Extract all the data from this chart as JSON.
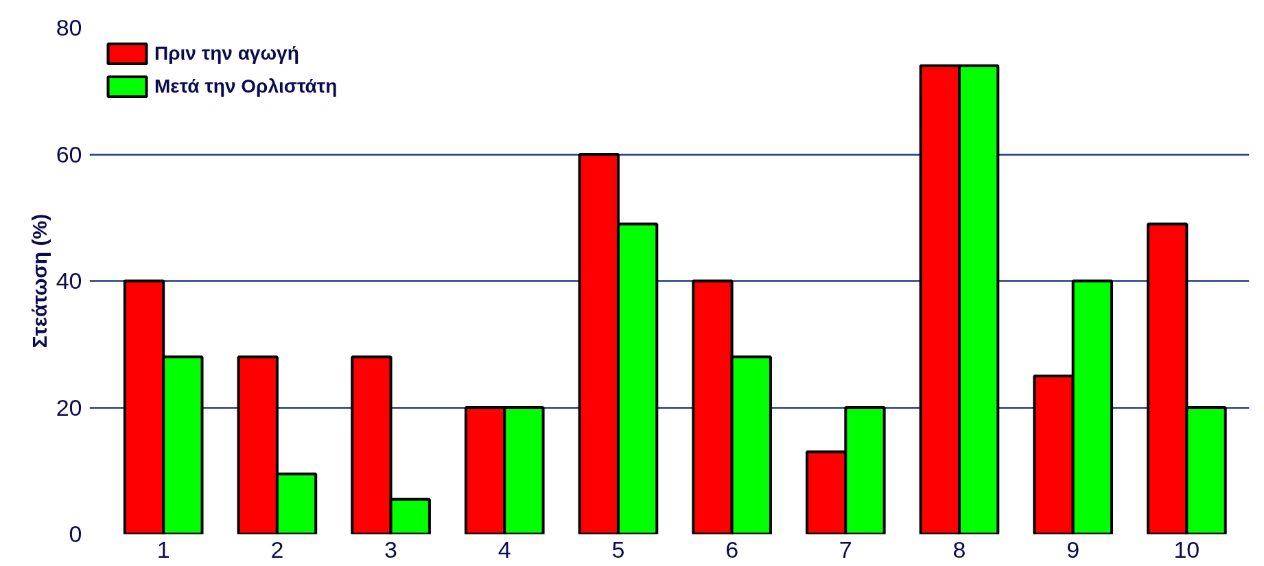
{
  "chart_data": {
    "type": "bar",
    "ylabel": "Στεάτωση (%)",
    "categories": [
      "1",
      "2",
      "3",
      "4",
      "5",
      "6",
      "7",
      "8",
      "9",
      "10"
    ],
    "series": [
      {
        "name": "Πριν την αγωγή",
        "color": "#ff0000",
        "values": [
          40,
          28,
          28,
          20,
          60,
          40,
          13,
          74,
          25,
          49
        ]
      },
      {
        "name": "Μετά την Ορλιστάτη",
        "color": "#00ff00",
        "values": [
          28,
          9.5,
          5.5,
          20,
          49,
          28,
          20,
          74,
          40,
          20
        ]
      }
    ],
    "ylim": [
      0,
      80
    ],
    "yticks": [
      0,
      20,
      40,
      60,
      80
    ],
    "grid": "y",
    "legend": "top left"
  }
}
